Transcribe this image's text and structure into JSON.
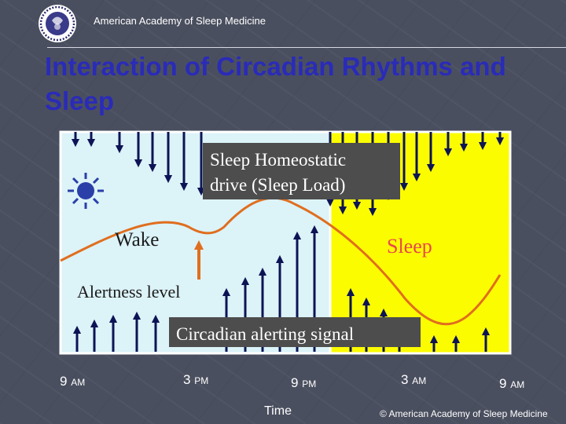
{
  "header": {
    "organization": "American Academy of Sleep Medicine"
  },
  "title": "Interaction of Circadian Rhythms and Sleep",
  "diagram": {
    "homeostatic_label_line1": "Sleep Homeostatic",
    "homeostatic_label_line2": "drive (Sleep Load)",
    "wake_label": "Wake",
    "sleep_label": "Sleep",
    "alertness_label": "Alertness level",
    "circadian_label": "Circadian alerting signal",
    "colors": {
      "wake_region": "#dcf3f8",
      "sleep_region": "#fcfc00",
      "curve": "#e06e1e",
      "arrows": "#0d1455",
      "sleep_label": "#e8484b"
    }
  },
  "time_axis": {
    "ticks": [
      {
        "num": "9",
        "suffix": "AM"
      },
      {
        "num": "3",
        "suffix": "PM"
      },
      {
        "num": "9",
        "suffix": "PM"
      },
      {
        "num": "3",
        "suffix": "AM"
      },
      {
        "num": "9",
        "suffix": "AM"
      }
    ],
    "title": "Time"
  },
  "footer": {
    "copyright": "© American Academy of Sleep Medicine"
  }
}
